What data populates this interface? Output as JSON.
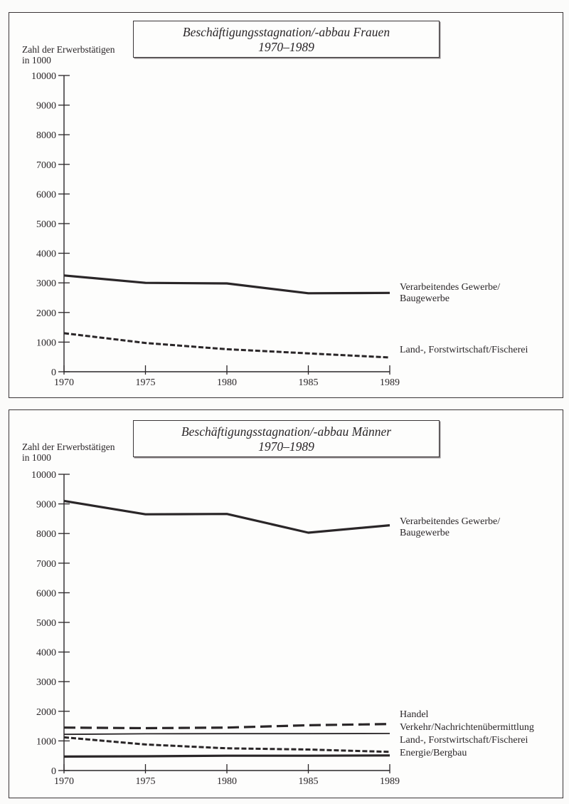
{
  "chart_data": [
    {
      "type": "line",
      "title": "Beschäftigungsstagnation/-abbau Frauen",
      "subtitle": "1970–1989",
      "xlabel": "",
      "ylabel": "Zahl der Erwerbstätigen in 1000",
      "x": [
        1970,
        1975,
        1980,
        1985,
        1989
      ],
      "ylim": [
        0,
        10000
      ],
      "yticks": [
        0,
        1000,
        2000,
        3000,
        4000,
        5000,
        6000,
        7000,
        8000,
        9000,
        10000
      ],
      "grid": false,
      "legend_position": "right-inline",
      "series": [
        {
          "name": "Verarbeitendes Gewerbe/ Baugewerbe",
          "style": "solid-thick",
          "values": [
            3250,
            3000,
            2980,
            2650,
            2660
          ]
        },
        {
          "name": "Land-, Forstwirtschaft/Fischerei",
          "style": "short-dash",
          "values": [
            1300,
            970,
            760,
            620,
            480
          ]
        }
      ]
    },
    {
      "type": "line",
      "title": "Beschäftigungsstagnation/-abbau Männer",
      "subtitle": "1970–1989",
      "xlabel": "",
      "ylabel": "Zahl der Erwerbstätigen in 1000",
      "x": [
        1970,
        1975,
        1980,
        1985,
        1989
      ],
      "ylim": [
        0,
        10000
      ],
      "yticks": [
        0,
        1000,
        2000,
        3000,
        4000,
        5000,
        6000,
        7000,
        8000,
        9000,
        10000
      ],
      "grid": false,
      "legend_position": "right-inline",
      "series": [
        {
          "name": "Verarbeitendes Gewerbe/ Baugewerbe",
          "style": "solid-thick",
          "values": [
            9100,
            8650,
            8660,
            8030,
            8280
          ]
        },
        {
          "name": "Handel",
          "style": "long-dash",
          "values": [
            1450,
            1430,
            1450,
            1530,
            1570
          ]
        },
        {
          "name": "Verkehr/Nachrichtenübermittlung",
          "style": "solid-thin",
          "values": [
            1220,
            1240,
            1245,
            1245,
            1250
          ]
        },
        {
          "name": "Land-, Forstwirtschaft/Fischerei",
          "style": "short-dash",
          "values": [
            1120,
            880,
            750,
            710,
            630
          ]
        },
        {
          "name": "Energie/Bergbau",
          "style": "solid-thick",
          "values": [
            470,
            480,
            500,
            500,
            510
          ]
        }
      ]
    }
  ],
  "charts": {
    "frauen": {
      "title": "Beschäftigungsstagnation/-abbau Frauen",
      "subtitle": "1970–1989",
      "ylabel_line1": "Zahl der Erwerbstätigen",
      "ylabel_line2": "in 1000",
      "labels": [
        "Verarbeitendes Gewerbe/",
        "Baugewerbe",
        "Land-, Forstwirtschaft/Fischerei"
      ]
    },
    "maenner": {
      "title": "Beschäftigungsstagnation/-abbau Männer",
      "subtitle": "1970–1989",
      "ylabel_line1": "Zahl der Erwerbstätigen",
      "ylabel_line2": "in 1000",
      "labels": [
        "Verarbeitendes Gewerbe/",
        "Baugewerbe",
        "Handel",
        "Verkehr/Nachrichtenübermittlung",
        "Land-, Forstwirtschaft/Fischerei",
        "Energie/Bergbau"
      ]
    }
  },
  "colors": {
    "ink": "#2a2628",
    "frame": "#3a3537",
    "paper": "#fbfbfa"
  }
}
